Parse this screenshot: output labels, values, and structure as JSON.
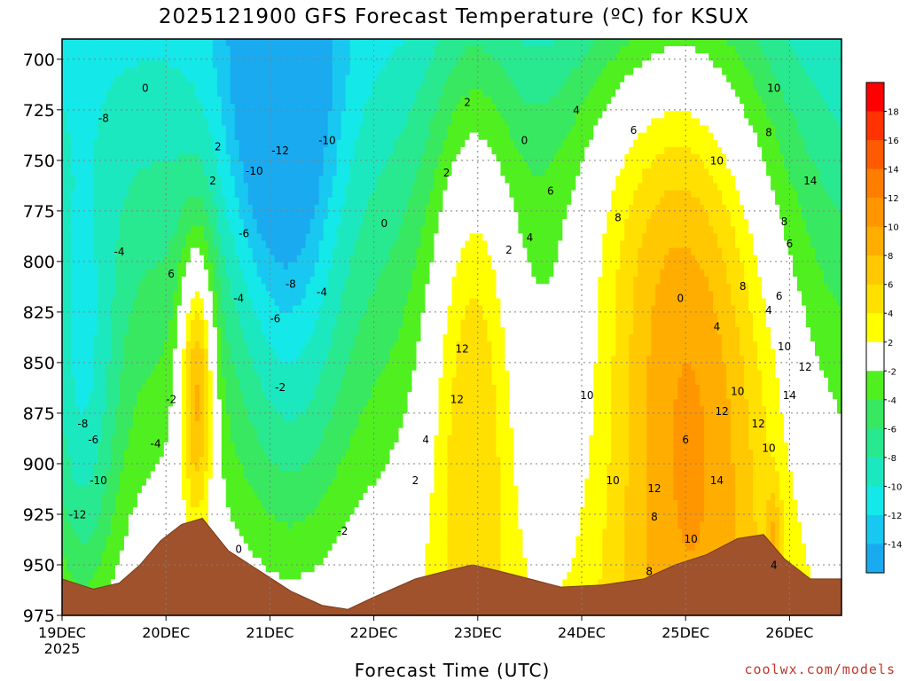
{
  "title": "2025121900 GFS Forecast Temperature (ºC) for KSUX",
  "xlabel": "Forecast Time (UTC)",
  "credit": "coolwx.com/models",
  "chart_data": {
    "type": "heatmap",
    "title": "2025121900 GFS Forecast Temperature (ºC) for KSUX",
    "xlabel": "Forecast Time (UTC)",
    "ylabel": "",
    "x_ticks": [
      "19DEC",
      "20DEC",
      "21DEC",
      "22DEC",
      "23DEC",
      "24DEC",
      "25DEC",
      "26DEC"
    ],
    "x_year_label": "2025",
    "xlim_days": [
      19.0,
      26.5
    ],
    "y_ticks": [
      700,
      725,
      750,
      775,
      800,
      825,
      850,
      875,
      900,
      925,
      950,
      975
    ],
    "ylim": [
      975,
      690
    ],
    "grid": true,
    "colorbar": {
      "levels": [
        -16,
        -14,
        -12,
        -10,
        -8,
        -6,
        -4,
        -2,
        2,
        4,
        6,
        8,
        10,
        12,
        14,
        16,
        18,
        20
      ],
      "tick_labels": [
        "18",
        "16",
        "14",
        "12",
        "10",
        "8",
        "6",
        "4",
        "2",
        "-2",
        "-4",
        "-6",
        "-8",
        "-10",
        "-12",
        "-14"
      ],
      "colors": [
        "#1aaaf0",
        "#18c8f0",
        "#14e8e8",
        "#1ce8c0",
        "#28e890",
        "#38e860",
        "#50f020",
        "#ffffff",
        "#ffff00",
        "#ffe000",
        "#ffc800",
        "#ffae00",
        "#ff9600",
        "#ff7e00",
        "#ff5a00",
        "#ff3200",
        "#ff0000"
      ]
    },
    "contour_labels": [
      "0",
      "-8",
      "2",
      "2",
      "-12",
      "-10",
      "-10",
      "-4",
      "-6",
      "6",
      "-4",
      "-8",
      "-6",
      "-4",
      "-2",
      "-2",
      "-8",
      "-6",
      "-4",
      "-10",
      "-12",
      "0",
      "-2",
      "0",
      "2",
      "0",
      "2",
      "6",
      "4",
      "2",
      "4",
      "6",
      "8",
      "10",
      "10",
      "8",
      "4",
      "8",
      "6",
      "4",
      "6",
      "8",
      "10",
      "12",
      "14",
      "14",
      "12",
      "10",
      "14",
      "12",
      "10",
      "8",
      "12",
      "10",
      "10",
      "12",
      "12",
      "4",
      "2",
      "0",
      "6",
      "4",
      "8",
      "10"
    ],
    "terrain_color": "#a0522d",
    "credit": "coolwx.com/models"
  }
}
